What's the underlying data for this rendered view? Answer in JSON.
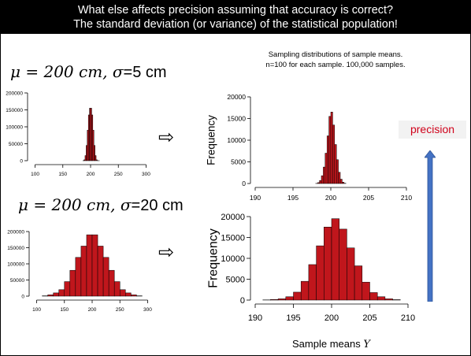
{
  "title": {
    "line1": "What else affects precision assuming that accuracy is correct?",
    "line2": "The standard deviation (or variance) of the statistical population!"
  },
  "formula_top": {
    "lhs": "μ = 200 cm, σ",
    "rhs": "=5 cm"
  },
  "formula_bottom": {
    "lhs": "μ = 200 cm, σ",
    "rhs": "=20 cm"
  },
  "sampling_note": {
    "line1": "Sampling distributions of sample means.",
    "line2": "n=100 for each sample.  100,000 samples."
  },
  "precision_label": "precision",
  "arrow_glyph": "⇨",
  "colors": {
    "bar": "#c0161c",
    "arrow": "#4472c4",
    "precision_text": "#d0021b"
  },
  "xcaption": {
    "text": "Sample means ",
    "var": "Y"
  },
  "chart_data": [
    {
      "type": "bar",
      "name": "population-sigma5",
      "x": [
        186,
        188,
        190,
        192,
        194,
        196,
        198,
        200,
        202,
        204,
        206,
        208,
        210,
        212,
        214
      ],
      "values": [
        200,
        2500,
        15000,
        45000,
        90000,
        135000,
        155000,
        155000,
        135000,
        90000,
        45000,
        15000,
        2500,
        200,
        50
      ],
      "bin_width": 2,
      "xlim": [
        95,
        305
      ],
      "ylim": [
        0,
        200000
      ],
      "xticks": [
        100,
        150,
        200,
        250,
        300
      ],
      "yticks": [
        0,
        50000,
        100000,
        150000,
        200000
      ],
      "ylabel": "",
      "xlabel": ""
    },
    {
      "type": "bar",
      "name": "sample-means-sigma5",
      "x": [
        198.0,
        198.25,
        198.5,
        198.75,
        199.0,
        199.25,
        199.5,
        199.75,
        200.0,
        200.25,
        200.5,
        200.75,
        201.0,
        201.25,
        201.5,
        201.75
      ],
      "values": [
        30,
        200,
        700,
        1800,
        3800,
        7000,
        11000,
        15500,
        16500,
        13500,
        9000,
        5500,
        2600,
        1000,
        300,
        60
      ],
      "bin_width": 0.25,
      "xlim": [
        190,
        210
      ],
      "ylim": [
        0,
        20000
      ],
      "xticks": [
        190,
        195,
        200,
        205,
        210
      ],
      "yticks": [
        0,
        5000,
        10000,
        15000,
        20000
      ],
      "ylabel": "Frequency",
      "xlabel": ""
    },
    {
      "type": "bar",
      "name": "population-sigma20",
      "x": [
        110,
        120,
        130,
        140,
        150,
        160,
        170,
        180,
        190,
        200,
        210,
        220,
        230,
        240,
        250,
        260,
        270,
        280
      ],
      "values": [
        1000,
        4000,
        10000,
        20000,
        45000,
        80000,
        120000,
        155000,
        190000,
        190000,
        155000,
        120000,
        80000,
        45000,
        20000,
        10000,
        4000,
        1000
      ],
      "bin_width": 10,
      "xlim": [
        95,
        305
      ],
      "ylim": [
        0,
        200000
      ],
      "xticks": [
        100,
        150,
        200,
        250,
        300
      ],
      "yticks": [
        0,
        50000,
        100000,
        150000,
        200000
      ],
      "ylabel": "",
      "xlabel": ""
    },
    {
      "type": "bar",
      "name": "sample-means-sigma20",
      "x": [
        191,
        192,
        193,
        194,
        195,
        196,
        197,
        198,
        199,
        200,
        201,
        202,
        203,
        204,
        205,
        206,
        207,
        208
      ],
      "values": [
        50,
        150,
        300,
        800,
        1900,
        4500,
        8500,
        13000,
        17500,
        19500,
        17000,
        12500,
        8200,
        4300,
        1800,
        800,
        300,
        100
      ],
      "bin_width": 1,
      "xlim": [
        190,
        210
      ],
      "ylim": [
        0,
        20000
      ],
      "xticks": [
        190,
        195,
        200,
        205,
        210
      ],
      "yticks": [
        0,
        5000,
        10000,
        15000,
        20000
      ],
      "ylabel": "Frequency",
      "xlabel": ""
    }
  ]
}
